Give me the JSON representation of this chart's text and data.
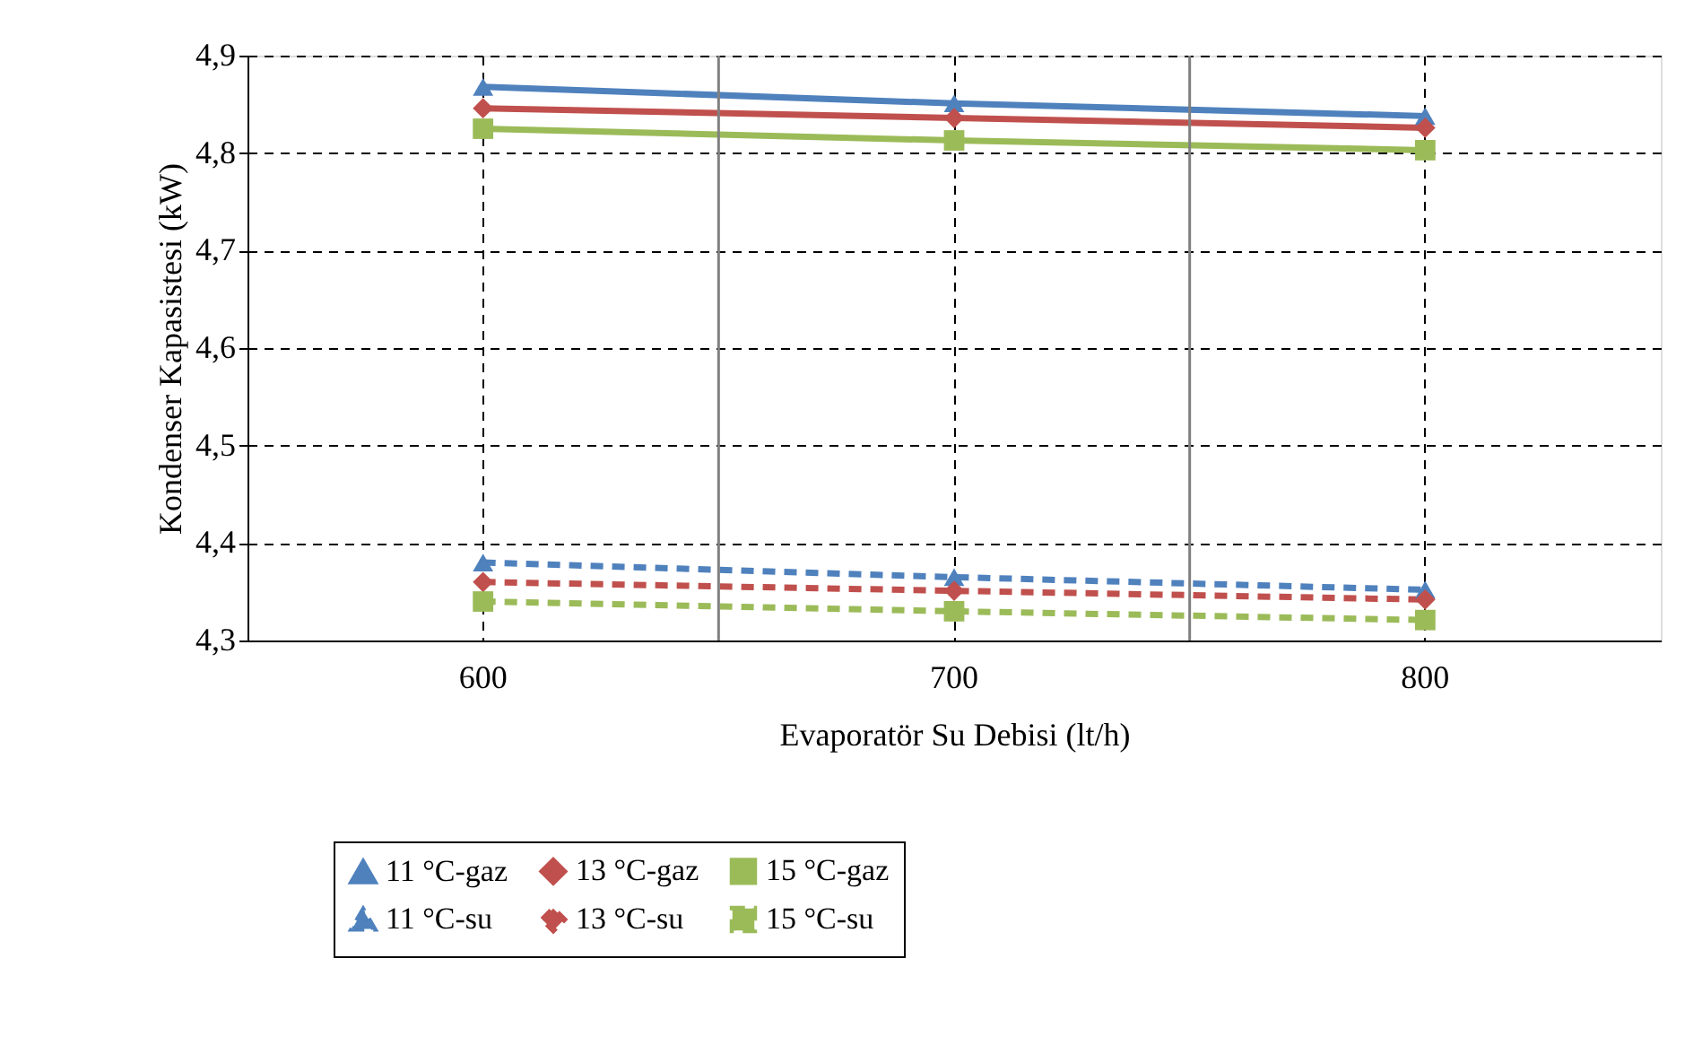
{
  "chart_data": {
    "type": "line",
    "xlabel": "Evaporatör Su Debisi (lt/h)",
    "ylabel": "Kondenser Kapasistesi (kW)",
    "categories": [
      "600",
      "700",
      "800"
    ],
    "series": [
      {
        "name": "11 °C-gaz",
        "color": "#4f81bd",
        "marker": "triangle",
        "line_style": "solid",
        "values": [
          4.868,
          4.851,
          4.838
        ]
      },
      {
        "name": "13 °C-gaz",
        "color": "#c0504d",
        "marker": "diamond",
        "line_style": "solid",
        "values": [
          4.846,
          4.836,
          4.826
        ]
      },
      {
        "name": "15 °C-gaz",
        "color": "#9bbb59",
        "marker": "square",
        "line_style": "solid",
        "values": [
          4.825,
          4.813,
          4.803
        ]
      },
      {
        "name": "11 °C-su",
        "color": "#4f81bd",
        "marker": "triangle",
        "line_style": "dashed",
        "values": [
          4.38,
          4.365,
          4.352
        ]
      },
      {
        "name": "13 °C-su",
        "color": "#c0504d",
        "marker": "diamond",
        "line_style": "dashed",
        "values": [
          4.36,
          4.351,
          4.342
        ]
      },
      {
        "name": "15 °C-su",
        "color": "#9bbb59",
        "marker": "square",
        "line_style": "dashed",
        "values": [
          4.34,
          4.33,
          4.321
        ]
      }
    ],
    "ylim": [
      4.3,
      4.9
    ],
    "yticks": [
      {
        "value": 4.3,
        "label": "4,3"
      },
      {
        "value": 4.4,
        "label": "4,4"
      },
      {
        "value": 4.5,
        "label": "4,5"
      },
      {
        "value": 4.6,
        "label": "4,6"
      },
      {
        "value": 4.7,
        "label": "4,7"
      },
      {
        "value": 4.8,
        "label": "4,8"
      },
      {
        "value": 4.9,
        "label": "4,9"
      }
    ],
    "grid": true,
    "legend": "bottom"
  }
}
